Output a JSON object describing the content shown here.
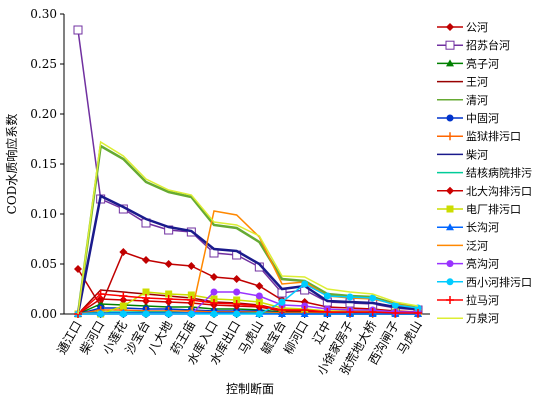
{
  "chart_data": {
    "type": "line",
    "y_label": "COD水质响应系数",
    "x_label": "控制断面",
    "categories": [
      "通江口",
      "柴河口",
      "小莲花",
      "沙宝台",
      "八大地",
      "药王庙",
      "水库入口",
      "水库出口",
      "马虎山",
      "毓宝台",
      "柳河口",
      "辽中",
      "小徐家房子",
      "张荒地大桥",
      "西沟闸子",
      "马虎山"
    ],
    "ylim": [
      0,
      0.3
    ],
    "yticks": [
      {
        "value": 0,
        "label": "0.00"
      },
      {
        "value": 0.05,
        "label": "0.05"
      },
      {
        "value": 0.1,
        "label": "0.10"
      },
      {
        "value": 0.15,
        "label": "0.15"
      },
      {
        "value": 0.2,
        "label": "0.20"
      },
      {
        "value": 0.25,
        "label": "0.25"
      },
      {
        "value": 0.3,
        "label": "0.30"
      }
    ],
    "series": [
      {
        "name": "公河",
        "color": "#c00000",
        "marker": "diamond",
        "values": [
          0.045,
          0.008,
          0.062,
          0.054,
          0.05,
          0.048,
          0.037,
          0.035,
          0.028,
          0.014,
          0.012,
          0.007,
          0.006,
          0.005,
          0.003,
          0.002
        ]
      },
      {
        "name": "招苏台河",
        "color": "#7030a0",
        "marker": "square-open",
        "values": [
          0.284,
          0.115,
          0.105,
          0.091,
          0.084,
          0.082,
          0.061,
          0.059,
          0.047,
          0.021,
          0.024,
          0.012,
          0.011,
          0.01,
          0.006,
          0.004
        ]
      },
      {
        "name": "亮子河",
        "color": "#008000",
        "marker": "triangle",
        "values": [
          0,
          0.01,
          0.009,
          0.008,
          0.007,
          0.007,
          0.005,
          0.005,
          0.004,
          0.002,
          0.002,
          0.001,
          0.001,
          0.001,
          0.001,
          0
        ]
      },
      {
        "name": "王河",
        "color": "#990000",
        "marker": "none",
        "values": [
          0,
          0.024,
          0.022,
          0.02,
          0.018,
          0.016,
          0.012,
          0.011,
          0.009,
          0.004,
          0.004,
          0.002,
          0.002,
          0.002,
          0.001,
          0.001
        ]
      },
      {
        "name": "清河",
        "color": "#66aa33",
        "marker": "none",
        "values": [
          0,
          0.168,
          0.155,
          0.132,
          0.122,
          0.117,
          0.089,
          0.086,
          0.072,
          0.035,
          0.033,
          0.02,
          0.018,
          0.017,
          0.01,
          0.007
        ]
      },
      {
        "name": "中固河",
        "color": "#0033cc",
        "marker": "circle",
        "values": [
          0,
          0.006,
          0.006,
          0.005,
          0.005,
          0.004,
          0.003,
          0.003,
          0.003,
          0.001,
          0.001,
          0.001,
          0.001,
          0.001,
          0,
          0
        ]
      },
      {
        "name": "监狱排污口",
        "color": "#ff6600",
        "marker": "plus",
        "values": [
          0,
          0.004,
          0.004,
          0.003,
          0.003,
          0.003,
          0.002,
          0.002,
          0.002,
          0.001,
          0.001,
          0.001,
          0,
          0,
          0,
          0
        ]
      },
      {
        "name": "柴河",
        "color": "#1a1a8c",
        "marker": "none",
        "values": [
          0,
          0.118,
          0.107,
          0.095,
          0.087,
          0.083,
          0.065,
          0.063,
          0.05,
          0.025,
          0.028,
          0.013,
          0.012,
          0.011,
          0.007,
          0.005
        ]
      },
      {
        "name": "结核病院排污",
        "color": "#00cc99",
        "marker": "none",
        "values": [
          0,
          0.002,
          0.002,
          0.002,
          0.002,
          0.001,
          0.001,
          0.001,
          0.001,
          0,
          0,
          0,
          0,
          0,
          0,
          0
        ]
      },
      {
        "name": "北大沟排污口",
        "color": "#cc0000",
        "marker": "diamond",
        "values": [
          0,
          0.015,
          0.014,
          0.013,
          0.012,
          0.011,
          0.009,
          0.008,
          0.007,
          0.003,
          0.003,
          0.002,
          0.002,
          0.002,
          0.001,
          0.001
        ]
      },
      {
        "name": "电厂排污口",
        "color": "#ccdd00",
        "marker": "square",
        "values": [
          0,
          0,
          0.008,
          0.022,
          0.02,
          0.019,
          0.015,
          0.014,
          0.012,
          0.006,
          0.005,
          0.003,
          0.003,
          0.003,
          0.002,
          0.001
        ]
      },
      {
        "name": "长沟河",
        "color": "#0066ff",
        "marker": "triangle",
        "values": [
          0,
          0.001,
          0.001,
          0.001,
          0.001,
          0.001,
          0.001,
          0.001,
          0,
          0,
          0,
          0,
          0,
          0,
          0,
          0
        ]
      },
      {
        "name": "泛河",
        "color": "#ff8800",
        "marker": "none",
        "values": [
          0,
          0,
          0,
          0,
          0,
          0,
          0.103,
          0.099,
          0.077,
          0.03,
          0.032,
          0.018,
          0.016,
          0.015,
          0.01,
          0.006
        ]
      },
      {
        "name": "亮沟河",
        "color": "#9933ff",
        "marker": "circle",
        "values": [
          0,
          0,
          0,
          0,
          0,
          0,
          0.022,
          0.022,
          0.018,
          0.009,
          0.008,
          0.005,
          0.004,
          0.004,
          0.002,
          0.002
        ]
      },
      {
        "name": "西小河排污口",
        "color": "#00ccff",
        "marker": "circle",
        "values": [
          0,
          0,
          0,
          0,
          0,
          0,
          0,
          0,
          0,
          0.012,
          0.03,
          0.018,
          0.017,
          0.016,
          0.009,
          0.006
        ]
      },
      {
        "name": "拉马河",
        "color": "#ff0000",
        "marker": "plus",
        "values": [
          0,
          0.02,
          0.018,
          0.016,
          0.015,
          0.014,
          0.011,
          0.01,
          0.008,
          0.004,
          0.004,
          0.002,
          0.002,
          0.002,
          0.001,
          0.001
        ]
      },
      {
        "name": "万泉河",
        "color": "#ddee33",
        "marker": "none",
        "values": [
          0,
          0.172,
          0.158,
          0.135,
          0.124,
          0.119,
          0.092,
          0.089,
          0.078,
          0.038,
          0.037,
          0.025,
          0.022,
          0.02,
          0.012,
          0.008
        ]
      }
    ]
  }
}
